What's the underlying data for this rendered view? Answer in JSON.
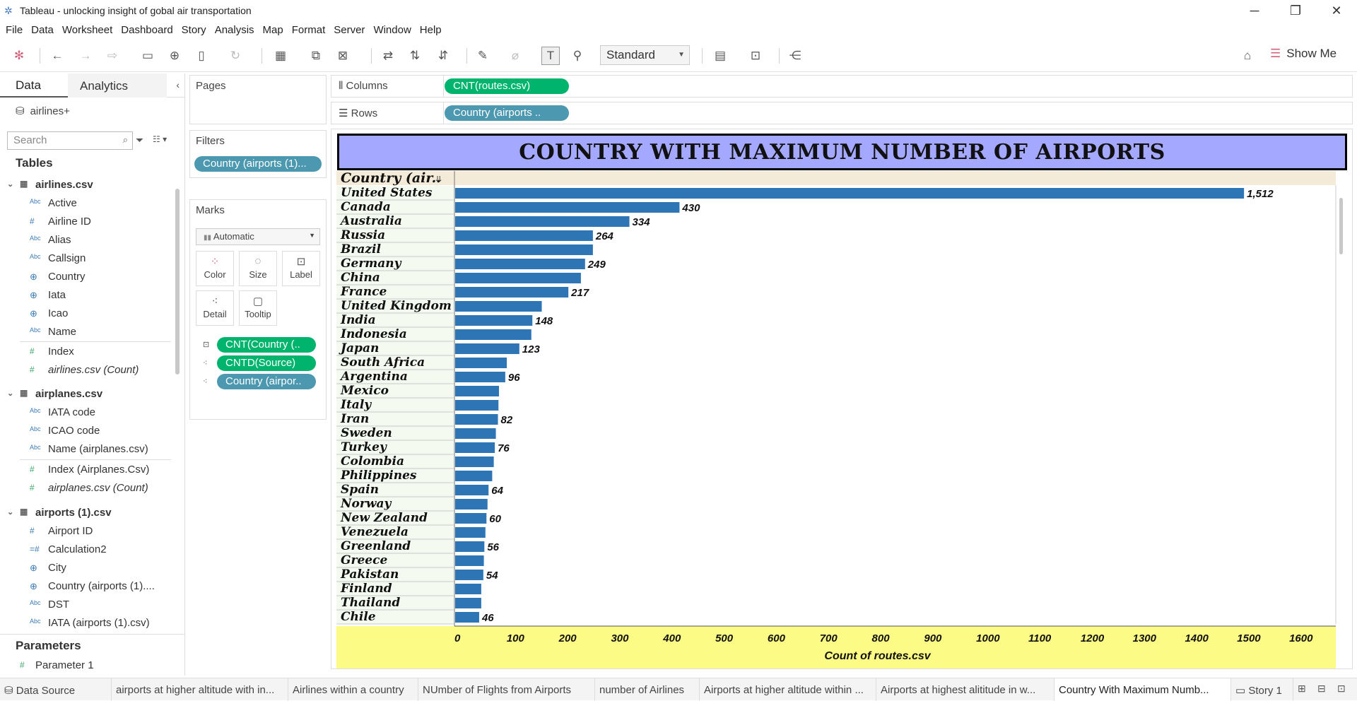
{
  "window": {
    "title": "Tableau - unlocking insight of gobal air transportation",
    "controls": [
      "minimize",
      "restore",
      "close"
    ]
  },
  "menu": [
    "File",
    "Data",
    "Worksheet",
    "Dashboard",
    "Story",
    "Analysis",
    "Map",
    "Format",
    "Server",
    "Window",
    "Help"
  ],
  "toolbar": {
    "fit_select": "Standard",
    "show_me": "Show Me"
  },
  "data_pane": {
    "tab_data": "Data",
    "tab_analytics": "Analytics",
    "datasource": "airlines+",
    "search_placeholder": "Search",
    "tables_header": "Tables",
    "tables": [
      {
        "name": "airlines.csv",
        "fields": [
          {
            "type": "Abc",
            "name": "Active"
          },
          {
            "type": "#",
            "name": "Airline ID"
          },
          {
            "type": "Abc",
            "name": "Alias"
          },
          {
            "type": "Abc",
            "name": "Callsign"
          },
          {
            "type": "globe",
            "name": "Country"
          },
          {
            "type": "globe",
            "name": "Iata"
          },
          {
            "type": "globe",
            "name": "Icao"
          },
          {
            "type": "Abc",
            "name": "Name"
          },
          {
            "type": "#",
            "name": "Index"
          },
          {
            "type": "#",
            "name": "airlines.csv (Count)"
          }
        ]
      },
      {
        "name": "airplanes.csv",
        "fields": [
          {
            "type": "Abc",
            "name": "IATA code"
          },
          {
            "type": "Abc",
            "name": "ICAO code"
          },
          {
            "type": "Abc",
            "name": "Name (airplanes.csv)"
          },
          {
            "type": "#",
            "name": "Index (Airplanes.Csv)"
          },
          {
            "type": "#",
            "name": "airplanes.csv (Count)"
          }
        ]
      },
      {
        "name": "airports (1).csv",
        "fields": [
          {
            "type": "#",
            "name": "Airport ID"
          },
          {
            "type": "=#",
            "name": "Calculation2"
          },
          {
            "type": "globe",
            "name": "City"
          },
          {
            "type": "globe",
            "name": "Country (airports (1)...."
          },
          {
            "type": "Abc",
            "name": "DST"
          },
          {
            "type": "Abc",
            "name": "IATA (airports (1).csv)"
          }
        ]
      }
    ],
    "parameters_header": "Parameters",
    "parameters": [
      "Parameter 1"
    ]
  },
  "cards": {
    "pages": "Pages",
    "filters": "Filters",
    "filter_pill": "Country (airports (1)...",
    "marks": "Marks",
    "mark_type": "Automatic",
    "mark_buttons": [
      "Color",
      "Size",
      "Label",
      "Detail",
      "Tooltip"
    ],
    "mark_pills": [
      "CNT(Country (..",
      "CNTD(Source)",
      "Country (airpor.."
    ]
  },
  "shelves": {
    "columns_label": "Columns",
    "columns_pill": "CNT(routes.csv)",
    "rows_label": "Rows",
    "rows_pill": "Country (airports .."
  },
  "bottom_tabs": [
    "Data Source",
    "airports at higher altitude with in...",
    "Airlines within a country",
    "NUmber of Flights from Airports",
    "number of Airlines",
    "Airports at higher altitude within ...",
    "Airports at highest alititude in w...",
    "Country With Maximum Numb...",
    "Story 1"
  ],
  "chart_data": {
    "type": "bar",
    "title": "COUNTRY WITH MAXIMUM NUMBER OF AIRPORTS",
    "row_header": "Country (air..",
    "xlabel": "Count of routes.csv",
    "xlim": [
      0,
      1650
    ],
    "xticks": [
      0,
      100,
      200,
      300,
      400,
      500,
      600,
      700,
      800,
      900,
      1000,
      1100,
      1200,
      1300,
      1400,
      1500,
      1600
    ],
    "bar_color": "#2e75b6",
    "categories": [
      "United States",
      "Canada",
      "Australia",
      "Russia",
      "Brazil",
      "Germany",
      "China",
      "France",
      "United Kingdom",
      "India",
      "Indonesia",
      "Japan",
      "South Africa",
      "Argentina",
      "Mexico",
      "Italy",
      "Iran",
      "Sweden",
      "Turkey",
      "Colombia",
      "Philippines",
      "Spain",
      "Norway",
      "New Zealand",
      "Venezuela",
      "Greenland",
      "Greece",
      "Pakistan",
      "Finland",
      "Thailand",
      "Chile"
    ],
    "values": [
      1512,
      430,
      334,
      264,
      264,
      249,
      241,
      217,
      166,
      148,
      146,
      123,
      99,
      96,
      84,
      83,
      82,
      78,
      76,
      74,
      71,
      64,
      62,
      60,
      58,
      56,
      55,
      54,
      50,
      50,
      46
    ],
    "labels": [
      "1,512",
      "430",
      "334",
      "264",
      "",
      "249",
      "",
      "217",
      "",
      "148",
      "",
      "123",
      "",
      "96",
      "",
      "",
      "82",
      "",
      "76",
      "",
      "",
      "64",
      "",
      "60",
      "",
      "56",
      "",
      "54",
      "",
      "",
      "46"
    ]
  }
}
